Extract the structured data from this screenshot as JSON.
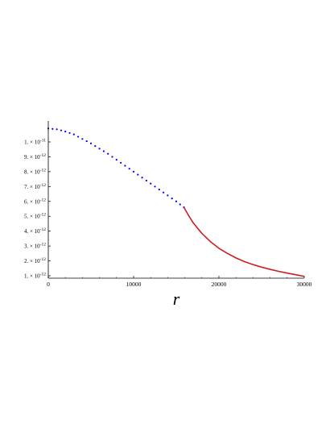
{
  "colors": {
    "inner_series": "#0000ff",
    "outer_series": "#cc1f1f",
    "axis": "#000000"
  },
  "chart_data": {
    "type": "line",
    "title": "",
    "xlabel": "r",
    "ylabel": "",
    "xlim": [
      0,
      30000
    ],
    "ylim": [
      9e-13,
      1.1e-11
    ],
    "x_ticks": [
      0,
      10000,
      20000,
      30000
    ],
    "x_tick_labels": [
      "0",
      "10000",
      "20000",
      "30000"
    ],
    "y_ticks": [
      1e-12,
      2e-12,
      3e-12,
      4e-12,
      5e-12,
      6e-12,
      7e-12,
      8e-12,
      9e-12,
      1e-11
    ],
    "y_tick_labels": [
      {
        "mantissa": "1. × 10",
        "exponent": "-12"
      },
      {
        "mantissa": "2. × 10",
        "exponent": "-12"
      },
      {
        "mantissa": "3. × 10",
        "exponent": "-12"
      },
      {
        "mantissa": "4. × 10",
        "exponent": "-12"
      },
      {
        "mantissa": "5. × 10",
        "exponent": "-12"
      },
      {
        "mantissa": "6. × 10",
        "exponent": "-12"
      },
      {
        "mantissa": "7. × 10",
        "exponent": "-12"
      },
      {
        "mantissa": "8. × 10",
        "exponent": "-12"
      },
      {
        "mantissa": "9. × 10",
        "exponent": "-12"
      },
      {
        "mantissa": "1. × 10",
        "exponent": "-11"
      }
    ],
    "grid": false,
    "legend": "none",
    "series": [
      {
        "style": "dotted",
        "color": "#0000ff",
        "x": [
          0,
          1000,
          2000,
          3000,
          4000,
          5000,
          6000,
          7000,
          8000,
          9000,
          10000,
          11000,
          12000,
          13000,
          14000,
          15000,
          15900
        ],
        "y": [
          1.09e-11,
          1.085e-11,
          1.07e-11,
          1.05e-11,
          1.02e-11,
          9.9e-12,
          9.55e-12,
          9.2e-12,
          8.8e-12,
          8.4e-12,
          8e-12,
          7.6e-12,
          7.2e-12,
          6.8e-12,
          6.4e-12,
          6e-12,
          5.6e-12
        ]
      },
      {
        "style": "solid",
        "color": "#cc1f1f",
        "x": [
          15900,
          16500,
          17000,
          18000,
          19000,
          20000,
          21000,
          22000,
          23000,
          24000,
          25000,
          26000,
          27000,
          28000,
          29000,
          30000
        ],
        "y": [
          5.6e-12,
          5e-12,
          4.55e-12,
          3.85e-12,
          3.3e-12,
          2.85e-12,
          2.5e-12,
          2.2e-12,
          1.95e-12,
          1.75e-12,
          1.58e-12,
          1.43e-12,
          1.3e-12,
          1.18e-12,
          1.07e-12,
          9.6e-13
        ]
      }
    ]
  }
}
